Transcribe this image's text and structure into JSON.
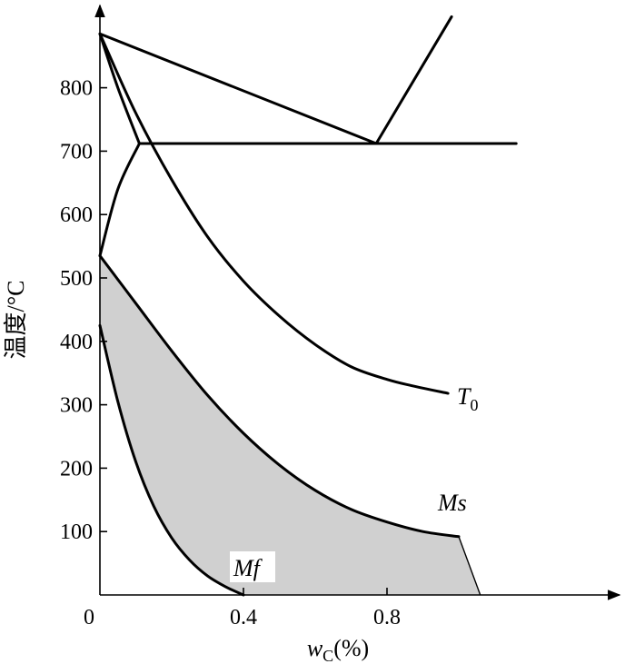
{
  "chart_data": {
    "type": "line",
    "title": "",
    "xlabel": {
      "main": "w",
      "sub": "C",
      "suffix": "(%)"
    },
    "ylabel": "温度/°C",
    "xlim": [
      0,
      1.4
    ],
    "ylim": [
      0,
      900
    ],
    "x_ticks": [
      {
        "value": 0,
        "label": "0"
      },
      {
        "value": 0.4,
        "label": "0.4"
      },
      {
        "value": 0.8,
        "label": "0.8"
      }
    ],
    "y_ticks": [
      100,
      200,
      300,
      400,
      500,
      600,
      700,
      800
    ],
    "grid": false,
    "series": [
      {
        "key": "a3_upper",
        "values": [
          [
            0,
            885
          ],
          [
            0.77,
            712
          ],
          [
            0.98,
            912
          ]
        ]
      },
      {
        "key": "eutectoid",
        "values": [
          [
            0.11,
            712
          ],
          [
            1.16,
            712
          ]
        ]
      },
      {
        "key": "ferrite_upper",
        "values": [
          [
            0,
            885
          ],
          [
            0.05,
            800
          ],
          [
            0.11,
            712
          ]
        ]
      },
      {
        "key": "ferrite_lower",
        "values": [
          [
            0,
            535
          ],
          [
            0.05,
            640
          ],
          [
            0.11,
            712
          ]
        ]
      },
      {
        "key": "T0",
        "name": "T",
        "name_sub": "0",
        "values": [
          [
            0,
            885
          ],
          [
            0.1,
            760
          ],
          [
            0.2,
            655
          ],
          [
            0.3,
            565
          ],
          [
            0.4,
            495
          ],
          [
            0.5,
            440
          ],
          [
            0.6,
            395
          ],
          [
            0.7,
            360
          ],
          [
            0.8,
            340
          ],
          [
            0.87,
            330
          ],
          [
            0.97,
            318
          ]
        ]
      },
      {
        "key": "Ms",
        "name": "Ms",
        "values": [
          [
            0,
            535
          ],
          [
            0.1,
            460
          ],
          [
            0.2,
            385
          ],
          [
            0.3,
            315
          ],
          [
            0.4,
            255
          ],
          [
            0.5,
            205
          ],
          [
            0.6,
            165
          ],
          [
            0.7,
            135
          ],
          [
            0.8,
            115
          ],
          [
            0.9,
            100
          ],
          [
            1.0,
            92
          ]
        ]
      },
      {
        "key": "Mf",
        "name": "Mf",
        "values": [
          [
            0,
            425
          ],
          [
            0.05,
            305
          ],
          [
            0.1,
            210
          ],
          [
            0.15,
            140
          ],
          [
            0.2,
            90
          ],
          [
            0.25,
            55
          ],
          [
            0.3,
            30
          ],
          [
            0.35,
            13
          ],
          [
            0.4,
            0
          ]
        ]
      }
    ],
    "shaded_region": {
      "color": "#d0d0d0",
      "between": [
        "Ms",
        "Mf"
      ],
      "closing_edge": [
        [
          1.0,
          92
        ],
        [
          1.06,
          0
        ]
      ]
    },
    "colors": {
      "line": "#000000",
      "fill": "#d0d0d0",
      "background": "#ffffff"
    }
  }
}
